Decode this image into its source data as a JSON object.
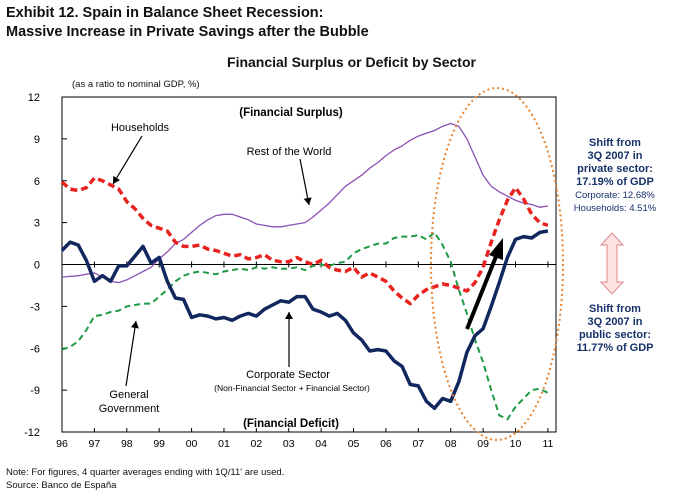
{
  "header": {
    "exhibit_line1": "Exhibit 12. Spain in Balance Sheet Recession:",
    "exhibit_line2": "Massive Increase in Private Savings after the Bubble"
  },
  "chart_data": {
    "type": "line",
    "title": "Financial Surplus or Deficit by Sector",
    "unit_note": "(as a ratio to nominal GDP, %)",
    "ylim": [
      -12,
      12
    ],
    "yticks": [
      12,
      9,
      6,
      3,
      0,
      -3,
      -6,
      -9,
      -12
    ],
    "x_range": [
      1996.0,
      2011.25
    ],
    "xtick_labels": [
      "96",
      "97",
      "98",
      "99",
      "00",
      "01",
      "02",
      "03",
      "04",
      "05",
      "06",
      "07",
      "08",
      "09",
      "10",
      "11"
    ],
    "series": [
      {
        "name": "Households",
        "color": "#e8231f",
        "style": "dashed-thick",
        "x": [
          1996.0,
          1996.25,
          1996.5,
          1996.75,
          1997.0,
          1997.25,
          1997.5,
          1997.75,
          1998.0,
          1998.25,
          1998.5,
          1998.75,
          1999.0,
          1999.25,
          1999.5,
          1999.75,
          2000.0,
          2000.25,
          2000.5,
          2000.75,
          2001.0,
          2001.25,
          2001.5,
          2001.75,
          2002.0,
          2002.25,
          2002.5,
          2002.75,
          2003.0,
          2003.25,
          2003.5,
          2003.75,
          2004.0,
          2004.25,
          2004.5,
          2004.75,
          2005.0,
          2005.25,
          2005.5,
          2005.75,
          2006.0,
          2006.25,
          2006.5,
          2006.75,
          2007.0,
          2007.25,
          2007.5,
          2007.75,
          2008.0,
          2008.25,
          2008.5,
          2008.75,
          2009.0,
          2009.25,
          2009.5,
          2009.75,
          2010.0,
          2010.25,
          2010.5,
          2010.75,
          2011.0
        ],
        "y": [
          5.9,
          5.4,
          5.3,
          5.5,
          6.2,
          6.0,
          5.7,
          5.4,
          4.5,
          4.0,
          3.3,
          2.8,
          2.6,
          2.4,
          1.6,
          1.3,
          1.3,
          1.4,
          1.1,
          1.0,
          0.8,
          0.6,
          0.7,
          0.4,
          0.5,
          0.7,
          0.3,
          0.2,
          0.2,
          0.5,
          0.2,
          0.0,
          0.3,
          -0.2,
          -0.4,
          -0.5,
          -0.2,
          -0.9,
          -0.6,
          -0.9,
          -1.2,
          -1.9,
          -2.4,
          -2.8,
          -2.2,
          -1.8,
          -1.6,
          -1.4,
          -1.5,
          -1.7,
          -1.9,
          -1.3,
          -0.2,
          1.6,
          3.2,
          4.6,
          5.5,
          4.7,
          3.6,
          3.0,
          2.8
        ]
      },
      {
        "name": "Rest of the World",
        "color": "#8b52b6",
        "style": "solid",
        "x": [
          1996.0,
          1996.5,
          1997.0,
          1997.25,
          1997.5,
          1997.75,
          1998.0,
          1998.25,
          1998.5,
          1998.75,
          1999.0,
          1999.25,
          1999.5,
          1999.75,
          2000.0,
          2000.25,
          2000.5,
          2000.75,
          2001.0,
          2001.25,
          2001.5,
          2001.75,
          2002.0,
          2002.25,
          2002.5,
          2002.75,
          2003.0,
          2003.25,
          2003.5,
          2003.75,
          2004.0,
          2004.25,
          2004.5,
          2004.75,
          2005.0,
          2005.25,
          2005.5,
          2005.75,
          2006.0,
          2006.25,
          2006.5,
          2006.75,
          2007.0,
          2007.25,
          2007.5,
          2007.75,
          2008.0,
          2008.25,
          2008.5,
          2008.75,
          2009.0,
          2009.25,
          2009.5,
          2009.75,
          2010.0,
          2010.25,
          2010.5,
          2010.75,
          2011.0
        ],
        "y": [
          -0.9,
          -0.8,
          -0.6,
          -0.9,
          -1.2,
          -1.3,
          -1.1,
          -0.8,
          -0.5,
          -0.2,
          0.4,
          0.9,
          1.5,
          1.8,
          2.3,
          2.8,
          3.2,
          3.5,
          3.6,
          3.6,
          3.4,
          3.2,
          2.9,
          2.8,
          2.7,
          2.7,
          2.8,
          2.9,
          3.0,
          3.4,
          3.9,
          4.4,
          5.0,
          5.6,
          6.0,
          6.4,
          6.9,
          7.3,
          7.8,
          8.2,
          8.5,
          8.9,
          9.2,
          9.4,
          9.6,
          9.9,
          10.1,
          9.9,
          9.0,
          7.7,
          6.4,
          5.6,
          5.2,
          4.9,
          4.6,
          4.4,
          4.3,
          4.1,
          4.2
        ]
      },
      {
        "name": "Corporate Sector",
        "sublabel": "(Non-Financial Sector + Financial Sector)",
        "color": "#12275e",
        "style": "solid-thick",
        "x": [
          1996.0,
          1996.25,
          1996.5,
          1996.75,
          1997.0,
          1997.25,
          1997.5,
          1997.75,
          1998.0,
          1998.25,
          1998.5,
          1998.75,
          1999.0,
          1999.25,
          1999.5,
          1999.75,
          2000.0,
          2000.25,
          2000.5,
          2000.75,
          2001.0,
          2001.25,
          2001.5,
          2001.75,
          2002.0,
          2002.25,
          2002.5,
          2002.75,
          2003.0,
          2003.25,
          2003.5,
          2003.75,
          2004.0,
          2004.25,
          2004.5,
          2004.75,
          2005.0,
          2005.25,
          2005.5,
          2005.75,
          2006.0,
          2006.25,
          2006.5,
          2006.75,
          2007.0,
          2007.25,
          2007.5,
          2007.75,
          2008.0,
          2008.25,
          2008.5,
          2008.75,
          2009.0,
          2009.25,
          2009.5,
          2009.75,
          2010.0,
          2010.25,
          2010.5,
          2010.75,
          2011.0
        ],
        "y": [
          1.0,
          1.6,
          1.4,
          0.3,
          -1.2,
          -0.8,
          -1.2,
          -0.1,
          -0.1,
          0.6,
          1.3,
          0.1,
          0.5,
          -1.2,
          -2.4,
          -2.5,
          -3.8,
          -3.6,
          -3.7,
          -3.9,
          -3.8,
          -4.0,
          -3.7,
          -3.5,
          -3.7,
          -3.2,
          -2.9,
          -2.6,
          -2.7,
          -2.3,
          -2.3,
          -3.2,
          -3.4,
          -3.7,
          -3.5,
          -4.0,
          -4.9,
          -5.4,
          -6.2,
          -6.1,
          -6.2,
          -6.9,
          -7.3,
          -8.6,
          -8.7,
          -9.8,
          -10.3,
          -9.6,
          -9.8,
          -8.4,
          -6.3,
          -5.1,
          -4.6,
          -3.0,
          -1.3,
          0.5,
          1.8,
          2.0,
          1.9,
          2.3,
          2.4
        ]
      },
      {
        "name": "General Government",
        "color": "#1e9a46",
        "style": "dashed",
        "x": [
          1996.0,
          1996.25,
          1996.5,
          1996.75,
          1997.0,
          1997.25,
          1997.5,
          1997.75,
          1998.0,
          1998.25,
          1998.5,
          1998.75,
          1999.0,
          1999.25,
          1999.5,
          1999.75,
          2000.0,
          2000.25,
          2000.5,
          2000.75,
          2001.0,
          2001.25,
          2001.5,
          2001.75,
          2002.0,
          2002.25,
          2002.5,
          2002.75,
          2003.0,
          2003.25,
          2003.5,
          2003.75,
          2004.0,
          2004.25,
          2004.5,
          2004.75,
          2005.0,
          2005.25,
          2005.5,
          2005.75,
          2006.0,
          2006.25,
          2006.5,
          2006.75,
          2007.0,
          2007.25,
          2007.5,
          2007.75,
          2008.0,
          2008.25,
          2008.5,
          2008.75,
          2009.0,
          2009.25,
          2009.5,
          2009.75,
          2010.0,
          2010.25,
          2010.5,
          2010.75,
          2011.0
        ],
        "y": [
          -6.1,
          -5.9,
          -5.5,
          -4.7,
          -3.7,
          -3.6,
          -3.4,
          -3.3,
          -3.0,
          -2.9,
          -2.8,
          -2.8,
          -2.3,
          -1.8,
          -1.2,
          -0.8,
          -0.6,
          -0.5,
          -0.6,
          -0.7,
          -0.5,
          -0.4,
          -0.3,
          -0.4,
          -0.2,
          -0.3,
          -0.2,
          -0.3,
          -0.3,
          -0.2,
          -0.4,
          -0.1,
          0.0,
          -0.1,
          0.1,
          0.2,
          0.8,
          1.1,
          1.3,
          1.5,
          1.5,
          1.9,
          2.0,
          2.0,
          2.1,
          1.8,
          2.3,
          1.4,
          0.2,
          -1.8,
          -3.5,
          -5.4,
          -7.0,
          -9.0,
          -10.8,
          -11.1,
          -10.2,
          -9.6,
          -9.0,
          -8.9,
          -9.2
        ]
      }
    ],
    "annotations": {
      "financial_surplus": "(Financial Surplus)",
      "financial_deficit": "(Financial Deficit)",
      "households_label": "Households",
      "row_label": "Rest of the World",
      "corporate_label": "Corporate Sector",
      "corporate_sublabel": "(Non-Financial Sector + Financial Sector)",
      "government_label_1": "General",
      "government_label_2": "Government"
    },
    "grid": false
  },
  "side_notes": {
    "private_shift_1": "Shift from",
    "private_shift_2": "3Q 2007 in",
    "private_shift_3": "private sector:",
    "private_shift_4": "17.19% of GDP",
    "corporate_share": "Corporate: 12.68%",
    "households_share": "Households: 4.51%",
    "public_shift_1": "Shift from",
    "public_shift_2": "3Q 2007 in",
    "public_shift_3": "public sector:",
    "public_shift_4": "11.77% of GDP"
  },
  "footer": {
    "note": "Note: For figures, 4 quarter averages ending with 1Q/11' are used.",
    "source": "Source: Banco de España"
  },
  "colors": {
    "households": "#e8231f",
    "rest_of_world": "#8b52b6",
    "corporate": "#12275e",
    "government": "#1e9a46",
    "highlight_ellipse": "#e8832f",
    "side_text": "#17316b",
    "arrow_fill": "#fbe3e3",
    "arrow_stroke": "#e08a8a"
  }
}
